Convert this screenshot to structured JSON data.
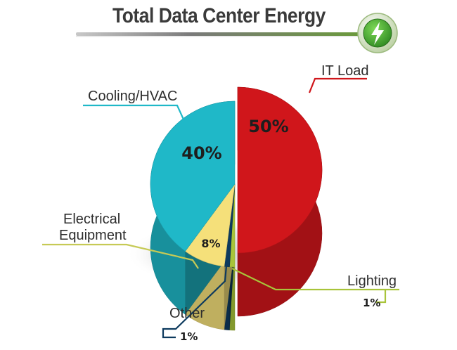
{
  "title": "Total Data Center Energy",
  "badge_icon": "lightning-bolt-icon",
  "chart_data": {
    "type": "pie",
    "title": "Total Data Center Energy",
    "slices": [
      {
        "label": "IT Load",
        "value": 50,
        "value_label": "50%",
        "color": "#d0161b"
      },
      {
        "label": "Lighting",
        "value": 1,
        "value_label": "1%",
        "color": "#a8c43a"
      },
      {
        "label": "Other",
        "value": 1,
        "value_label": "1%",
        "color": "#0d3a5e"
      },
      {
        "label": "Electrical Equipment",
        "value": 8,
        "value_label": "8%",
        "color": "#f5e07a"
      },
      {
        "label": "Cooling/HVAC",
        "value": 40,
        "value_label": "40%",
        "color": "#1fb8c8"
      }
    ],
    "label_colors": {
      "IT Load": "#d0161b",
      "Cooling/HVAC": "#1fb8c8",
      "Electrical Equipment": "#c6ca55",
      "Lighting": "#a8c43a",
      "Other": "#0d3a5e"
    },
    "legend": "none",
    "grid": false
  }
}
